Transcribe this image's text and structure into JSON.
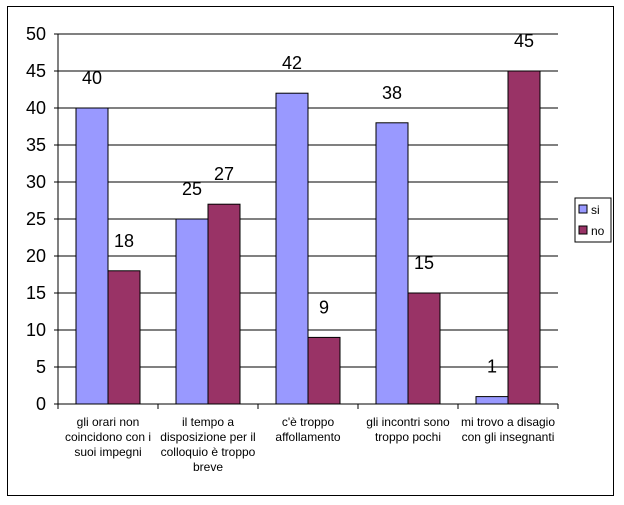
{
  "chart_data": {
    "type": "bar",
    "categories": [
      [
        "gli orari non",
        "coincidono con i",
        "suoi impegni"
      ],
      [
        "il tempo a",
        "disposizione per il",
        "colloquio è troppo",
        "breve"
      ],
      [
        "c'è troppo",
        "affollamento"
      ],
      [
        "gli incontri sono",
        "troppo pochi"
      ],
      [
        "mi trovo a disagio",
        "con gli insegnanti"
      ]
    ],
    "series": [
      {
        "name": "si",
        "values": [
          40,
          25,
          42,
          38,
          1
        ],
        "color": "#9999FF"
      },
      {
        "name": "no",
        "values": [
          18,
          27,
          9,
          15,
          45
        ],
        "color": "#993366"
      }
    ],
    "ylim": [
      0,
      50
    ],
    "ytick_step": 5,
    "title": "",
    "xlabel": "",
    "ylabel": "",
    "grid": true,
    "legend": "right"
  }
}
